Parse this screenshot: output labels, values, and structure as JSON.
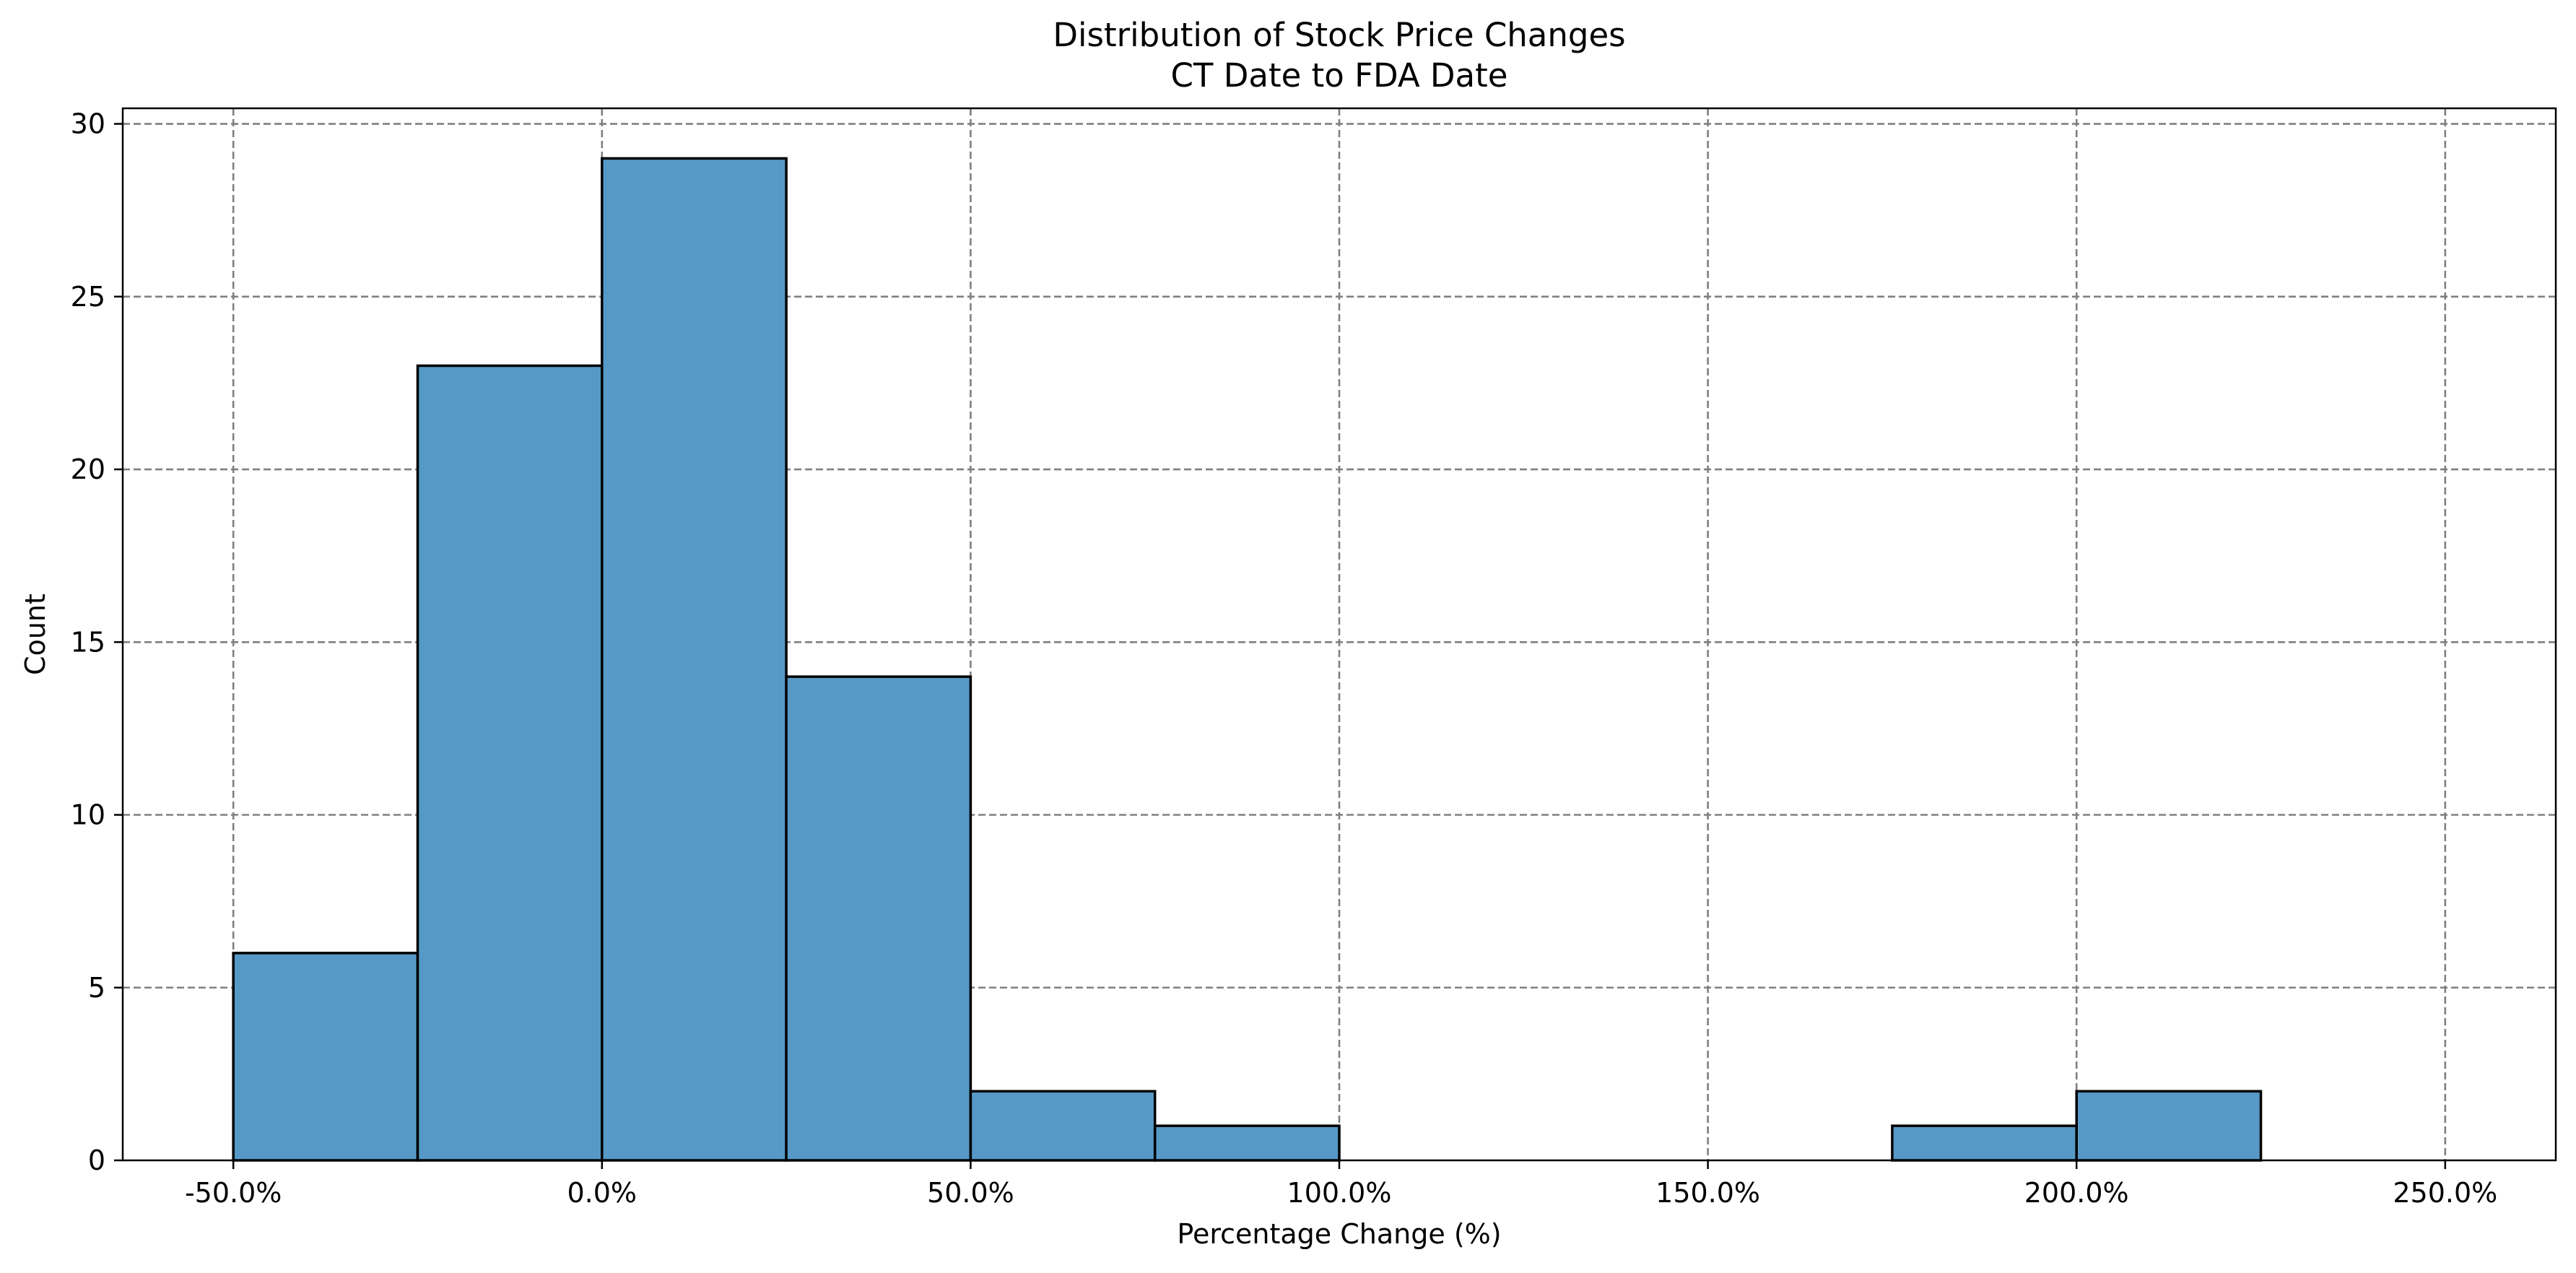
{
  "chart_data": {
    "type": "bar",
    "title": [
      "Distribution of Stock Price Changes",
      "CT Date to FDA Date"
    ],
    "xlabel": "Percentage Change (%)",
    "ylabel": "Count",
    "bins": [
      {
        "start": -50,
        "end": -25,
        "count": 6
      },
      {
        "start": -25,
        "end": 0,
        "count": 23
      },
      {
        "start": 0,
        "end": 25,
        "count": 29
      },
      {
        "start": 25,
        "end": 50,
        "count": 14
      },
      {
        "start": 50,
        "end": 75,
        "count": 2
      },
      {
        "start": 75,
        "end": 100,
        "count": 1
      },
      {
        "start": 100,
        "end": 125,
        "count": 0
      },
      {
        "start": 125,
        "end": 150,
        "count": 0
      },
      {
        "start": 150,
        "end": 175,
        "count": 0
      },
      {
        "start": 175,
        "end": 200,
        "count": 1
      },
      {
        "start": 200,
        "end": 225,
        "count": 2
      }
    ],
    "xlim": [
      -65,
      265
    ],
    "ylim": [
      0,
      30.45
    ],
    "xticks": [
      -50,
      0,
      50,
      100,
      150,
      200,
      250
    ],
    "xtick_labels": [
      "-50.0%",
      "0.0%",
      "50.0%",
      "100.0%",
      "150.0%",
      "200.0%",
      "250.0%"
    ],
    "yticks": [
      0,
      5,
      10,
      15,
      20,
      25,
      30
    ],
    "ytick_labels": [
      "0",
      "5",
      "10",
      "15",
      "20",
      "25",
      "30"
    ],
    "grid": true,
    "bar_color": "#5699c6",
    "edge_color": "#000000",
    "grid_color": "#808080"
  }
}
